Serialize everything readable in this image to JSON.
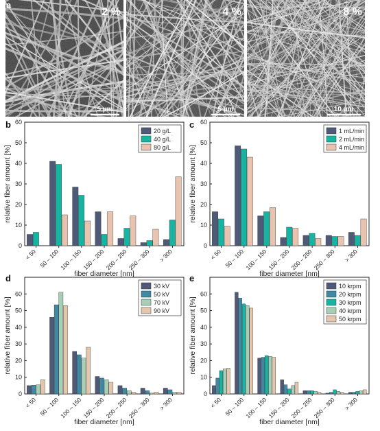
{
  "figure_labels": {
    "a": "a",
    "b": "b",
    "c": "c",
    "d": "d",
    "e": "e"
  },
  "sem_panels": [
    {
      "concentration": "2 %",
      "scale_bar": "5 µm"
    },
    {
      "concentration": "4 %",
      "scale_bar": "5 µm"
    },
    {
      "concentration": "8 %",
      "scale_bar": "10 µm"
    }
  ],
  "colors": {
    "navy": "#4f5a78",
    "teal": "#17b4a2",
    "peach": "#e8c4b0",
    "steel": "#3f89a3",
    "sage": "#a7cfb6",
    "tan": "#e4c6ad"
  },
  "chart_data": [
    {
      "panel": "b",
      "type": "bar",
      "xlabel": "fiber diameter [nm]",
      "ylabel": "relative fiber amount [%]",
      "ylim": [
        0,
        60
      ],
      "yticks": [
        0,
        10,
        20,
        30,
        40,
        50,
        60
      ],
      "categories": [
        "< 50",
        "50 – 100",
        "100 – 150",
        "150 – 200",
        "200 – 250",
        "250 – 300",
        "> 300"
      ],
      "legend_position": "top-right",
      "series": [
        {
          "name": "20 g/L",
          "color": "#4f5a78",
          "values": [
            5.5,
            41,
            28.5,
            16.5,
            3.5,
            1.5,
            3
          ]
        },
        {
          "name": "40 g/L",
          "color": "#17b4a2",
          "values": [
            6.5,
            39.5,
            24.5,
            5.5,
            8.5,
            2.5,
            12.5
          ]
        },
        {
          "name": "80 g/L",
          "color": "#e8c4b0",
          "values": [
            0,
            15,
            12,
            16.5,
            14.5,
            8,
            33.5
          ]
        }
      ]
    },
    {
      "panel": "c",
      "type": "bar",
      "xlabel": "fiber diameter [nm]",
      "ylabel": "relative fiber amount [%]",
      "ylim": [
        0,
        60
      ],
      "yticks": [
        0,
        10,
        20,
        30,
        40,
        50,
        60
      ],
      "categories": [
        "< 50",
        "50 – 100",
        "100 – 150",
        "150 – 200",
        "200 – 250",
        "250 – 300",
        "> 300"
      ],
      "legend_position": "top-right",
      "series": [
        {
          "name": "1 mL/min",
          "color": "#4f5a78",
          "values": [
            16.5,
            48.5,
            14.5,
            4,
            5,
            5,
            6.5
          ]
        },
        {
          "name": "2 mL/min",
          "color": "#17b4a2",
          "values": [
            13,
            47,
            16.5,
            9,
            6,
            4.5,
            5
          ]
        },
        {
          "name": "4 mL/min",
          "color": "#e8c4b0",
          "values": [
            9.5,
            43,
            18.5,
            8.5,
            3.5,
            4.5,
            13
          ]
        }
      ]
    },
    {
      "panel": "d",
      "type": "bar",
      "xlabel": "fiber diameter [nm]",
      "ylabel": "relative fiber amount [%]",
      "ylim": [
        0,
        70
      ],
      "yticks": [
        0,
        10,
        20,
        30,
        40,
        50,
        60
      ],
      "categories": [
        "< 50",
        "50 – 100",
        "100 – 150",
        "150 – 200",
        "200 – 250",
        "250 – 300",
        "> 300"
      ],
      "legend_position": "top-right",
      "series": [
        {
          "name": "30 kV",
          "color": "#4f5a78",
          "values": [
            5,
            46,
            25.5,
            10.5,
            5,
            3.5,
            3.5
          ]
        },
        {
          "name": "50 kV",
          "color": "#3f89a3",
          "values": [
            5.2,
            53.5,
            23.5,
            9.5,
            3.5,
            2,
            2.5
          ]
        },
        {
          "name": "70 kV",
          "color": "#a7cfb6",
          "values": [
            5.5,
            61,
            21.5,
            8.5,
            2,
            0.5,
            1
          ]
        },
        {
          "name": "90 kV",
          "color": "#e4c6ad",
          "values": [
            8.5,
            53,
            28,
            7,
            1,
            1,
            1
          ]
        }
      ]
    },
    {
      "panel": "e",
      "type": "bar",
      "xlabel": "fiber diameter [nm]",
      "ylabel": "relative fiber amount [%]",
      "ylim": [
        0,
        70
      ],
      "yticks": [
        0,
        10,
        20,
        30,
        40,
        50,
        60
      ],
      "categories": [
        "< 50",
        "50 – 100",
        "100 – 150",
        "150 – 200",
        "200 – 250",
        "250 – 300",
        "> 300"
      ],
      "legend_position": "top-right",
      "series": [
        {
          "name": "10 krpm",
          "color": "#4f5a78",
          "values": [
            5,
            61,
            21.5,
            8.5,
            2,
            0.5,
            1
          ]
        },
        {
          "name": "20 krpm",
          "color": "#3f89a3",
          "values": [
            9.5,
            57.5,
            22,
            5.5,
            2,
            1,
            1
          ]
        },
        {
          "name": "30 krpm",
          "color": "#17b4a2",
          "values": [
            14,
            54,
            23,
            3,
            2,
            2.5,
            1.5
          ]
        },
        {
          "name": "40 krpm",
          "color": "#a7cfb6",
          "values": [
            15,
            53,
            22.5,
            5,
            1.5,
            1.5,
            2
          ]
        },
        {
          "name": "50 krpm",
          "color": "#e4c6ad",
          "values": [
            15.5,
            51.5,
            22,
            7,
            1,
            1,
            2.5
          ]
        }
      ]
    }
  ]
}
